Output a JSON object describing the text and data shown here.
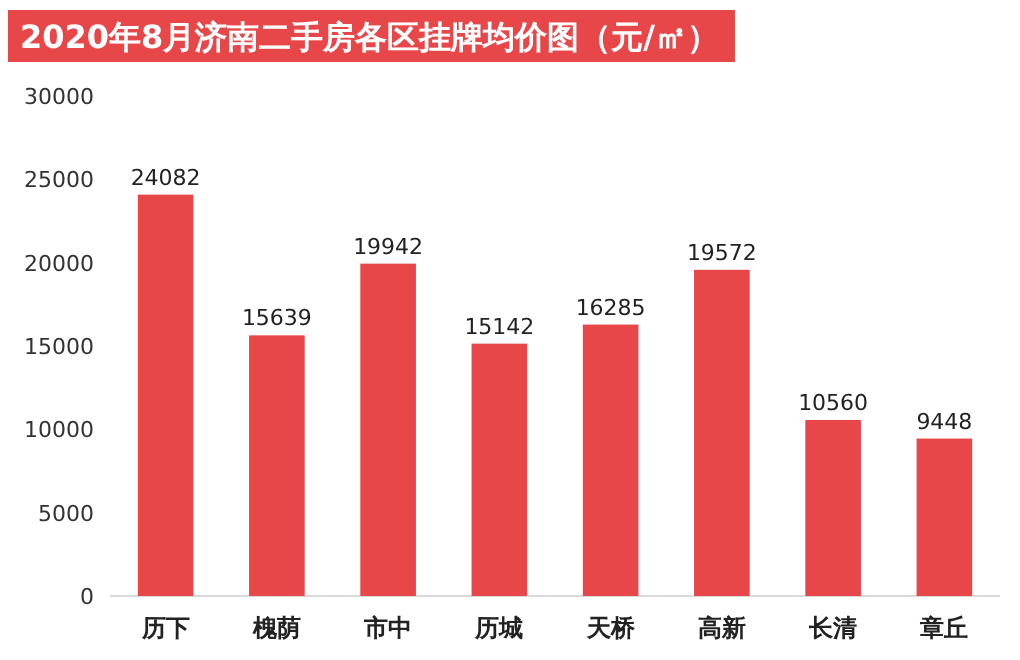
{
  "chart_data": {
    "type": "bar",
    "title": "2020年8月济南二手房各区挂牌均价图（元/㎡）",
    "categories": [
      "历下",
      "槐荫",
      "市中",
      "历城",
      "天桥",
      "高新",
      "长清",
      "章丘"
    ],
    "values": [
      24082,
      15639,
      19942,
      15142,
      16285,
      19572,
      10560,
      9448
    ],
    "color": "#e8474a",
    "ylim": [
      0,
      30000
    ],
    "yticks": [
      0,
      5000,
      10000,
      15000,
      20000,
      25000,
      30000
    ],
    "data_labels": true,
    "grid": false
  }
}
